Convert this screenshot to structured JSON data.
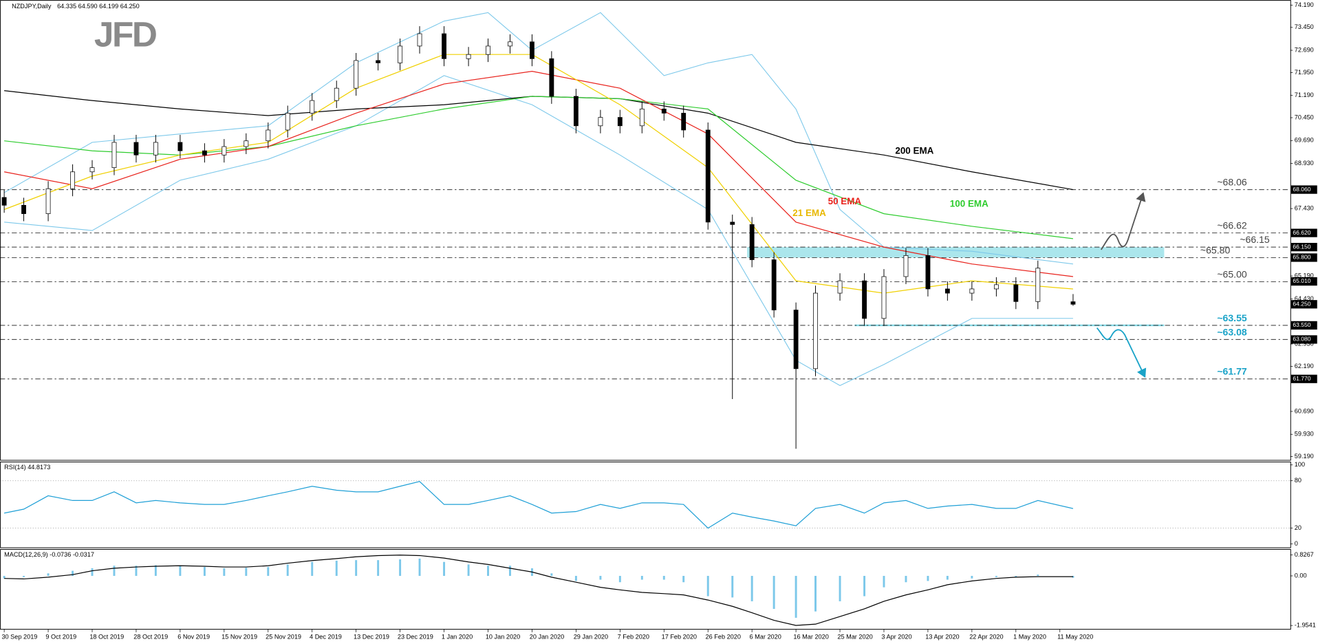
{
  "logo": "JFD",
  "chart_data": [
    {
      "type": "candlestick",
      "title": "NZDJPY,Daily",
      "subtitle": "64.335 64.590 64.199 64.250",
      "up_color": "#ffffff",
      "down_color": "#000000",
      "outline": "#000000",
      "x": [
        "2019-09-30",
        "2019-10-04",
        "2019-10-09",
        "2019-10-14",
        "2019-10-18",
        "2019-10-23",
        "2019-10-28",
        "2019-11-01",
        "2019-11-06",
        "2019-11-11",
        "2019-11-15",
        "2019-11-20",
        "2019-11-25",
        "2019-11-29",
        "2019-12-04",
        "2019-12-09",
        "2019-12-13",
        "2019-12-18",
        "2019-12-23",
        "2019-12-27",
        "2020-01-01",
        "2020-01-06",
        "2020-01-10",
        "2020-01-15",
        "2020-01-20",
        "2020-01-24",
        "2020-01-29",
        "2020-02-03",
        "2020-02-07",
        "2020-02-12",
        "2020-02-17",
        "2020-02-21",
        "2020-02-26",
        "2020-03-02",
        "2020-03-06",
        "2020-03-11",
        "2020-03-16",
        "2020-03-20",
        "2020-03-25",
        "2020-03-30",
        "2020-04-03",
        "2020-04-08",
        "2020-04-13",
        "2020-04-17",
        "2020-04-22",
        "2020-04-27",
        "2020-05-01",
        "2020-05-06",
        "2020-05-14"
      ],
      "open": [
        67.8,
        67.54,
        67.26,
        68.09,
        68.65,
        68.79,
        69.63,
        69.21,
        69.63,
        69.35,
        69.21,
        69.49,
        69.68,
        70.04,
        70.6,
        71.02,
        71.43,
        72.35,
        72.27,
        72.83,
        73.24,
        72.41,
        72.55,
        72.83,
        72.97,
        72.41,
        71.16,
        70.18,
        70.46,
        70.18,
        70.74,
        70.6,
        70.04,
        66.98,
        66.9,
        65.73,
        64.06,
        62.11,
        64.62,
        65.03,
        63.78,
        65.17,
        65.87,
        64.76,
        64.62,
        64.76,
        64.9,
        64.34,
        64.335
      ],
      "high": [
        68.05,
        67.79,
        68.34,
        68.9,
        69.04,
        69.88,
        69.88,
        69.88,
        69.88,
        69.6,
        69.74,
        69.93,
        70.29,
        70.85,
        71.27,
        71.68,
        72.6,
        72.6,
        73.08,
        73.49,
        73.49,
        72.8,
        73.08,
        73.22,
        73.22,
        72.66,
        71.41,
        70.71,
        70.71,
        70.99,
        70.99,
        70.85,
        70.29,
        67.23,
        67.15,
        65.98,
        64.31,
        64.87,
        65.28,
        65.28,
        65.42,
        66.12,
        66.12,
        65.01,
        65.01,
        65.15,
        65.15,
        65.7,
        64.59
      ],
      "low": [
        67.29,
        67.01,
        67.01,
        67.84,
        68.4,
        68.54,
        68.96,
        68.96,
        69.1,
        68.96,
        68.96,
        69.24,
        69.43,
        69.79,
        70.35,
        70.77,
        71.18,
        72.02,
        72.02,
        72.58,
        72.16,
        72.16,
        72.3,
        72.58,
        72.16,
        70.91,
        69.93,
        69.93,
        69.93,
        69.93,
        70.35,
        69.79,
        66.73,
        61.1,
        65.48,
        63.81,
        59.45,
        61.86,
        64.37,
        63.53,
        63.53,
        64.92,
        64.51,
        64.37,
        64.37,
        64.51,
        64.09,
        64.09,
        64.199
      ],
      "close": [
        67.54,
        67.26,
        68.09,
        68.65,
        68.79,
        69.63,
        69.21,
        69.63,
        69.35,
        69.21,
        69.49,
        69.68,
        70.04,
        70.6,
        71.02,
        71.43,
        72.35,
        72.27,
        72.83,
        73.24,
        72.41,
        72.55,
        72.83,
        72.97,
        72.41,
        71.16,
        70.18,
        70.46,
        70.18,
        70.74,
        70.6,
        70.04,
        66.98,
        66.9,
        65.73,
        64.06,
        62.11,
        64.62,
        65.03,
        63.78,
        65.17,
        65.87,
        64.76,
        64.62,
        64.76,
        64.9,
        64.34,
        65.45,
        64.25
      ],
      "ylim": [
        59.08,
        74.36
      ],
      "yticks": [
        {
          "value": 74.19,
          "label": "74.190"
        },
        {
          "value": 73.45,
          "label": "73.450"
        },
        {
          "value": 72.69,
          "label": "72.690"
        },
        {
          "value": 71.95,
          "label": "71.950"
        },
        {
          "value": 71.19,
          "label": "71.190"
        },
        {
          "value": 70.45,
          "label": "70.450"
        },
        {
          "value": 69.69,
          "label": "69.690"
        },
        {
          "value": 68.93,
          "label": "68.930"
        },
        {
          "value": 67.43,
          "label": "67.430"
        },
        {
          "value": 65.19,
          "label": "65.190"
        },
        {
          "value": 64.43,
          "label": "64.430"
        },
        {
          "value": 62.93,
          "label": "62.930"
        },
        {
          "value": 62.19,
          "label": "62.190"
        },
        {
          "value": 60.69,
          "label": "60.690"
        },
        {
          "value": 59.93,
          "label": "59.930"
        },
        {
          "value": 59.19,
          "label": "59.190"
        }
      ],
      "xticks": [
        {
          "value": "2019-09-30",
          "label": "30 Sep 2019"
        },
        {
          "value": "2019-10-09",
          "label": "9 Oct 2019"
        },
        {
          "value": "2019-10-18",
          "label": "18 Oct 2019"
        },
        {
          "value": "2019-10-28",
          "label": "28 Oct 2019"
        },
        {
          "value": "2019-11-06",
          "label": "6 Nov 2019"
        },
        {
          "value": "2019-11-15",
          "label": "15 Nov 2019"
        },
        {
          "value": "2019-11-25",
          "label": "25 Nov 2019"
        },
        {
          "value": "2019-12-04",
          "label": "4 Dec 2019"
        },
        {
          "value": "2019-12-13",
          "label": "13 Dec 2019"
        },
        {
          "value": "2019-12-23",
          "label": "23 Dec 2019"
        },
        {
          "value": "2020-01-01",
          "label": "1 Jan 2020"
        },
        {
          "value": "2020-01-10",
          "label": "10 Jan 2020"
        },
        {
          "value": "2020-01-20",
          "label": "20 Jan 2020"
        },
        {
          "value": "2020-01-29",
          "label": "29 Jan 2020"
        },
        {
          "value": "2020-02-07",
          "label": "7 Feb 2020"
        },
        {
          "value": "2020-02-17",
          "label": "17 Feb 2020"
        },
        {
          "value": "2020-02-26",
          "label": "26 Feb 2020"
        },
        {
          "value": "2020-03-06",
          "label": "6 Mar 2020"
        },
        {
          "value": "2020-03-16",
          "label": "16 Mar 2020"
        },
        {
          "value": "2020-03-25",
          "label": "25 Mar 2020"
        },
        {
          "value": "2020-04-03",
          "label": "3 Apr 2020"
        },
        {
          "value": "2020-04-13",
          "label": "13 Apr 2020"
        },
        {
          "value": "2020-04-22",
          "label": "22 Apr 2020"
        },
        {
          "value": "2020-05-01",
          "label": "1 May 2020"
        },
        {
          "value": "2020-05-11",
          "label": "11 May 2020"
        }
      ],
      "overlays": [
        {
          "name": "200 EMA",
          "color": "#000000",
          "x": [
            "2019-09-30",
            "2019-10-18",
            "2019-11-06",
            "2019-11-25",
            "2019-12-13",
            "2020-01-01",
            "2020-01-20",
            "2020-02-07",
            "2020-02-26",
            "2020-03-16",
            "2020-04-03",
            "2020-04-22",
            "2020-05-14"
          ],
          "values": [
            71.35,
            71.02,
            70.74,
            70.52,
            70.74,
            70.88,
            71.16,
            71.08,
            70.6,
            69.63,
            69.21,
            68.65,
            68.06
          ]
        },
        {
          "name": "100 EMA",
          "color": "#2ecc2e",
          "x": [
            "2019-09-30",
            "2019-10-18",
            "2019-11-06",
            "2019-11-25",
            "2019-12-13",
            "2020-01-01",
            "2020-01-20",
            "2020-02-07",
            "2020-02-26",
            "2020-03-16",
            "2020-04-03",
            "2020-04-22",
            "2020-05-14"
          ],
          "values": [
            69.68,
            69.35,
            69.21,
            69.49,
            70.18,
            70.74,
            71.16,
            71.08,
            70.74,
            68.37,
            67.26,
            66.84,
            66.43
          ]
        },
        {
          "name": "50 EMA",
          "color": "#e8211b",
          "x": [
            "2019-09-30",
            "2019-10-18",
            "2019-11-06",
            "2019-11-25",
            "2019-12-13",
            "2020-01-01",
            "2020-01-20",
            "2020-02-07",
            "2020-02-26",
            "2020-03-16",
            "2020-04-03",
            "2020-04-22",
            "2020-05-14"
          ],
          "values": [
            68.65,
            68.09,
            69.07,
            69.49,
            70.6,
            71.57,
            71.99,
            71.43,
            69.91,
            66.98,
            66.15,
            65.59,
            65.17
          ]
        },
        {
          "name": "21 EMA",
          "color": "#f0d000",
          "x": [
            "2019-09-30",
            "2019-10-18",
            "2019-11-06",
            "2019-11-25",
            "2019-12-13",
            "2020-01-01",
            "2020-01-20",
            "2020-02-07",
            "2020-02-26",
            "2020-03-16",
            "2020-04-03",
            "2020-04-22",
            "2020-05-14"
          ],
          "values": [
            67.4,
            68.51,
            69.21,
            69.63,
            71.43,
            72.55,
            72.55,
            70.88,
            68.79,
            65.03,
            64.62,
            65.03,
            64.76
          ]
        }
      ],
      "bands": [
        {
          "color": "#7cc8ea",
          "x": [
            "2019-09-30",
            "2019-10-18",
            "2019-11-06",
            "2019-11-25",
            "2019-12-13",
            "2020-01-01",
            "2020-01-10",
            "2020-01-20",
            "2020-02-03",
            "2020-02-17",
            "2020-02-26",
            "2020-03-06",
            "2020-03-16",
            "2020-03-25",
            "2020-04-03",
            "2020-04-22",
            "2020-05-14"
          ],
          "values": [
            67.96,
            69.63,
            69.91,
            70.18,
            72.27,
            73.66,
            73.94,
            72.69,
            73.94,
            71.85,
            72.27,
            72.55,
            70.74,
            67.4,
            66.15,
            66.01,
            65.59
          ]
        },
        {
          "color": "#7cc8ea",
          "x": [
            "2019-09-30",
            "2019-10-18",
            "2019-11-06",
            "2019-11-25",
            "2019-12-13",
            "2020-01-01",
            "2020-01-20",
            "2020-02-07",
            "2020-02-26",
            "2020-03-16",
            "2020-03-25",
            "2020-04-03",
            "2020-04-22",
            "2020-05-14"
          ],
          "values": [
            66.98,
            66.7,
            68.37,
            69.07,
            70.18,
            71.85,
            70.88,
            69.21,
            67.4,
            62.39,
            61.55,
            62.25,
            63.78,
            63.78
          ]
        }
      ],
      "zones": [
        {
          "from": 65.8,
          "to": 66.15,
          "start": "2020-03-05",
          "color": "#8fdde6"
        },
        {
          "from": 63.55,
          "to": 63.55,
          "start": "2020-03-28",
          "color": "#5fcfe0"
        }
      ],
      "levels": [
        {
          "value": 68.06,
          "label": "~68.06",
          "color": "#444444"
        },
        {
          "value": 66.62,
          "label": "~66.62",
          "color": "#444444"
        },
        {
          "value": 66.15,
          "label": "~66.15",
          "color": "#444444"
        },
        {
          "value": 65.8,
          "label": "~65.80",
          "color": "#444444"
        },
        {
          "value": 65,
          "label": "~65.00",
          "color": "#444444"
        },
        {
          "value": 63.55,
          "label": "~63.55",
          "color": "#1aa3c8"
        },
        {
          "value": 63.08,
          "label": "~63.08",
          "color": "#1aa3c8"
        },
        {
          "value": 61.77,
          "label": "~61.77",
          "color": "#1aa3c8"
        }
      ],
      "price_labels": [
        {
          "value": 68.06,
          "label": "68.060"
        },
        {
          "value": 66.62,
          "label": "66.620"
        },
        {
          "value": 66.15,
          "label": "66.150"
        },
        {
          "value": 65.8,
          "label": "65.800"
        },
        {
          "value": 65.01,
          "label": "65.010"
        },
        {
          "value": 64.25,
          "label": "64.250"
        },
        {
          "value": 63.55,
          "label": "63.550"
        },
        {
          "value": 63.08,
          "label": "63.080"
        },
        {
          "value": 61.77,
          "label": "61.770"
        }
      ]
    },
    {
      "type": "line",
      "title": "RSI(14) 44.8173",
      "color": "#1e9fd6",
      "x": [
        "2019-09-30",
        "2019-10-04",
        "2019-10-09",
        "2019-10-14",
        "2019-10-18",
        "2019-10-23",
        "2019-10-28",
        "2019-11-01",
        "2019-11-06",
        "2019-11-11",
        "2019-11-15",
        "2019-11-20",
        "2019-11-25",
        "2019-11-29",
        "2019-12-04",
        "2019-12-09",
        "2019-12-13",
        "2019-12-18",
        "2019-12-23",
        "2019-12-27",
        "2020-01-01",
        "2020-01-06",
        "2020-01-10",
        "2020-01-15",
        "2020-01-20",
        "2020-01-24",
        "2020-01-29",
        "2020-02-03",
        "2020-02-07",
        "2020-02-12",
        "2020-02-17",
        "2020-02-21",
        "2020-02-26",
        "2020-03-02",
        "2020-03-06",
        "2020-03-11",
        "2020-03-16",
        "2020-03-20",
        "2020-03-25",
        "2020-03-30",
        "2020-04-03",
        "2020-04-08",
        "2020-04-13",
        "2020-04-17",
        "2020-04-22",
        "2020-04-27",
        "2020-05-01",
        "2020-05-06",
        "2020-05-14"
      ],
      "values": [
        39,
        44,
        61,
        55,
        55,
        66,
        52,
        55,
        52,
        50,
        50,
        55,
        61,
        66,
        73,
        68,
        66,
        66,
        73,
        79,
        50,
        50,
        55,
        61,
        50,
        39,
        41,
        50,
        45,
        52,
        52,
        50,
        20,
        39,
        34,
        29,
        23,
        45,
        50,
        39,
        52,
        55,
        45,
        48,
        50,
        45,
        45,
        55,
        44.8173
      ],
      "ylim": [
        0,
        100
      ],
      "yticks": [
        100,
        80,
        20,
        0
      ],
      "levels": [
        80,
        20
      ]
    },
    {
      "type": "macd",
      "title": "MACD(12,26,9) -0.0736 -0.0317",
      "color": "#7cc8ea",
      "signal_color": "#000000",
      "x": [
        "2019-09-30",
        "2019-10-04",
        "2019-10-09",
        "2019-10-14",
        "2019-10-18",
        "2019-10-23",
        "2019-10-28",
        "2019-11-01",
        "2019-11-06",
        "2019-11-11",
        "2019-11-15",
        "2019-11-20",
        "2019-11-25",
        "2019-11-29",
        "2019-12-04",
        "2019-12-09",
        "2019-12-13",
        "2019-12-18",
        "2019-12-23",
        "2019-12-27",
        "2020-01-01",
        "2020-01-06",
        "2020-01-10",
        "2020-01-15",
        "2020-01-20",
        "2020-01-24",
        "2020-01-29",
        "2020-02-03",
        "2020-02-07",
        "2020-02-12",
        "2020-02-17",
        "2020-02-21",
        "2020-02-26",
        "2020-03-02",
        "2020-03-06",
        "2020-03-11",
        "2020-03-16",
        "2020-03-20",
        "2020-03-25",
        "2020-03-30",
        "2020-04-03",
        "2020-04-08",
        "2020-04-13",
        "2020-04-17",
        "2020-04-22",
        "2020-04-27",
        "2020-05-01",
        "2020-05-06",
        "2020-05-14"
      ],
      "values": [
        -0.1,
        -0.05,
        0.1,
        0.2,
        0.3,
        0.4,
        0.4,
        0.42,
        0.38,
        0.35,
        0.3,
        0.32,
        0.35,
        0.45,
        0.55,
        0.6,
        0.62,
        0.62,
        0.65,
        0.68,
        0.55,
        0.45,
        0.4,
        0.4,
        0.3,
        0.1,
        -0.2,
        -0.15,
        -0.25,
        -0.15,
        -0.15,
        -0.25,
        -0.8,
        -0.85,
        -1.0,
        -1.3,
        -1.65,
        -1.4,
        -1.0,
        -0.8,
        -0.45,
        -0.25,
        -0.2,
        -0.15,
        -0.1,
        -0.05,
        -0.05,
        0.05,
        -0.0736
      ],
      "signal": [
        -0.1,
        -0.12,
        -0.05,
        0.05,
        0.2,
        0.3,
        0.35,
        0.38,
        0.4,
        0.38,
        0.35,
        0.35,
        0.4,
        0.5,
        0.6,
        0.68,
        0.75,
        0.8,
        0.82,
        0.8,
        0.7,
        0.55,
        0.45,
        0.3,
        0.15,
        -0.05,
        -0.25,
        -0.45,
        -0.55,
        -0.65,
        -0.7,
        -0.75,
        -0.95,
        -1.2,
        -1.45,
        -1.75,
        -1.95,
        -1.9,
        -1.6,
        -1.3,
        -1.0,
        -0.75,
        -0.55,
        -0.35,
        -0.2,
        -0.1,
        -0.05,
        -0.03,
        -0.0317
      ],
      "ylim": [
        -1.9541,
        0.8267
      ],
      "yticks": [
        0.8267,
        {
          "value": 0,
          "label": "0.00"
        },
        -1.9541
      ]
    }
  ]
}
